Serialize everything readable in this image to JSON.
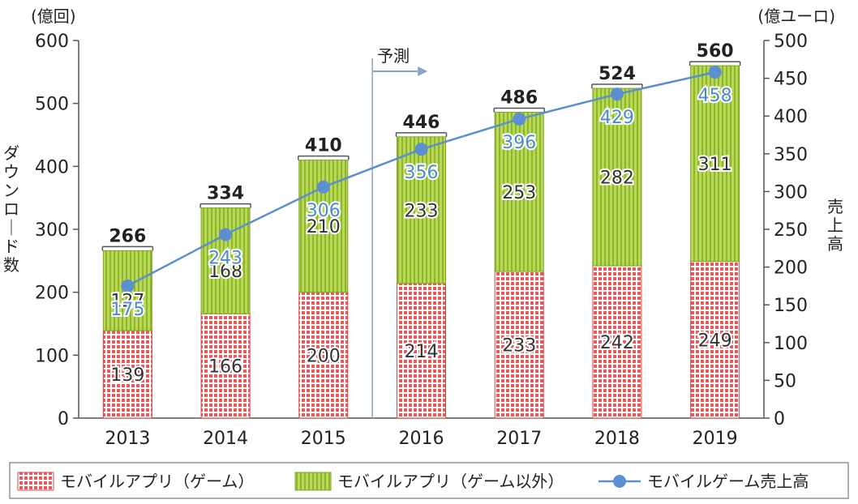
{
  "chart_data": {
    "type": "bar",
    "stacked": true,
    "categories": [
      "2013",
      "2014",
      "2015",
      "2016",
      "2017",
      "2018",
      "2019"
    ],
    "series": [
      {
        "name": "モバイルアプリ（ゲーム）",
        "values": [
          139,
          166,
          200,
          214,
          233,
          242,
          249
        ],
        "color": "#e85a5a",
        "axis": "left"
      },
      {
        "name": "モバイルアプリ（ゲーム以外）",
        "values": [
          127,
          168,
          210,
          233,
          253,
          282,
          311
        ],
        "color": "#a8cc3c",
        "axis": "left"
      }
    ],
    "totals": [
      266,
      334,
      410,
      446,
      486,
      524,
      560
    ],
    "line": {
      "name": "モバイルゲーム売上高",
      "values": [
        175,
        243,
        306,
        356,
        396,
        429,
        458
      ],
      "color": "#5b8fd0",
      "axis": "right"
    },
    "left_axis": {
      "label": "ダウンロード数",
      "unit": "(億回)",
      "range": [
        0,
        600
      ],
      "ticks": [
        0,
        100,
        200,
        300,
        400,
        500,
        600
      ]
    },
    "right_axis": {
      "label": "売上高",
      "unit": "(億ユーロ)",
      "range": [
        0,
        500
      ],
      "ticks": [
        0,
        50,
        100,
        150,
        200,
        250,
        300,
        350,
        400,
        450,
        500
      ]
    },
    "forecast": {
      "label": "予測",
      "start_category": "2016"
    },
    "legend_position": "bottom"
  }
}
